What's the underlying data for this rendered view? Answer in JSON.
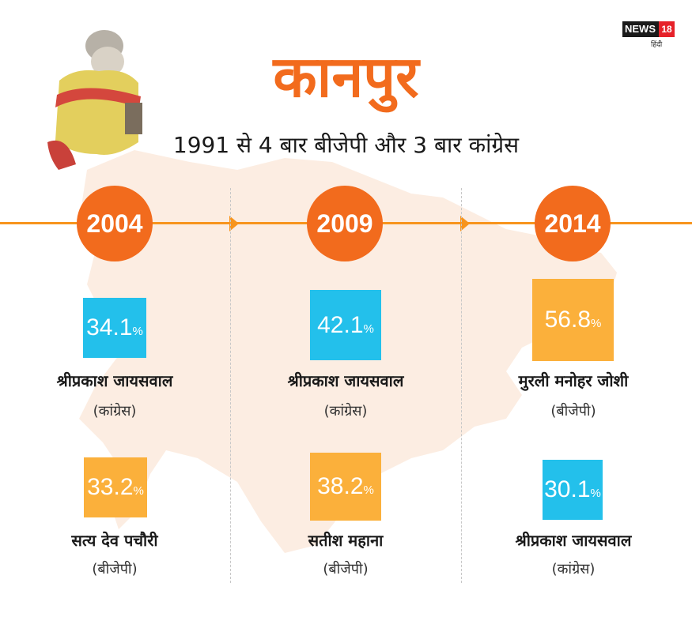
{
  "brand": {
    "name": "NEWS",
    "number": "18",
    "sub": "हिंदी"
  },
  "title": "कानपुर",
  "subtitle": "1991 से 4 बार बीजेपी और 3 बार कांग्रेस",
  "colors": {
    "accent": "#f26b1d",
    "timeline": "#f7941d",
    "cyan": "#23c0eb",
    "amber": "#fbb03b"
  },
  "columns": [
    {
      "year": "2004",
      "winner": {
        "pct": "34.1",
        "sign": "%",
        "name": "श्रीप्रकाश जायसवाल",
        "party": "(कांग्रेस)"
      },
      "runner": {
        "pct": "33.2",
        "sign": "%",
        "name": "सत्य देव पचौरी",
        "party": "(बीजेपी)"
      }
    },
    {
      "year": "2009",
      "winner": {
        "pct": "42.1",
        "sign": "%",
        "name": "श्रीप्रकाश जायसवाल",
        "party": "(कांग्रेस)"
      },
      "runner": {
        "pct": "38.2",
        "sign": "%",
        "name": "सतीश महाना",
        "party": "(बीजेपी)"
      }
    },
    {
      "year": "2014",
      "winner": {
        "pct": "56.8",
        "sign": "%",
        "name": "मुरली मनोहर जोशी",
        "party": "(बीजेपी)"
      },
      "runner": {
        "pct": "30.1",
        "sign": "%",
        "name": "श्रीप्रकाश जायसवाल",
        "party": "(कांग्रेस)"
      }
    }
  ]
}
